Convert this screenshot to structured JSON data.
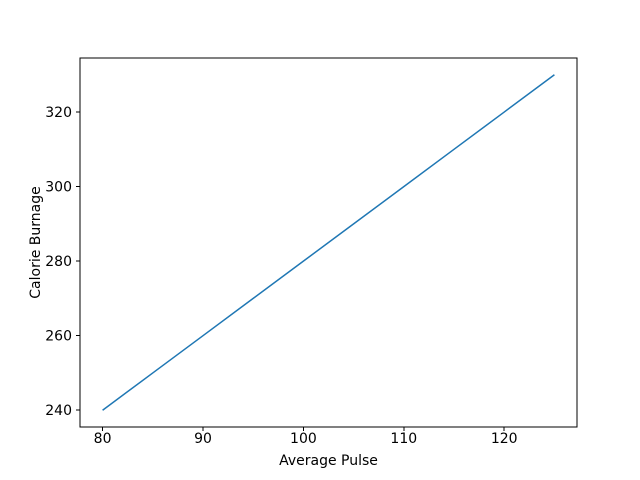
{
  "figure": {
    "background": "#ffffff"
  },
  "chart_data": {
    "type": "line",
    "title": "",
    "xlabel": "Average Pulse",
    "ylabel": "Calorie Burnage",
    "x": [
      80,
      85,
      90,
      95,
      100,
      105,
      110,
      115,
      120,
      125
    ],
    "series": [
      {
        "name": "Calorie Burnage",
        "values": [
          240,
          250,
          260,
          270,
          280,
          290,
          300,
          310,
          320,
          330
        ],
        "color": "#1f77b4",
        "linewidth": 1.5
      }
    ],
    "xticks": [
      80,
      90,
      100,
      110,
      120
    ],
    "yticks": [
      240,
      260,
      280,
      300,
      320
    ],
    "xlim": [
      77.75,
      127.25
    ],
    "ylim": [
      235.5,
      334.5
    ],
    "grid": false,
    "legend": "none",
    "spine_color": "#000000",
    "tick_color": "#000000",
    "text_color": "#000000"
  }
}
